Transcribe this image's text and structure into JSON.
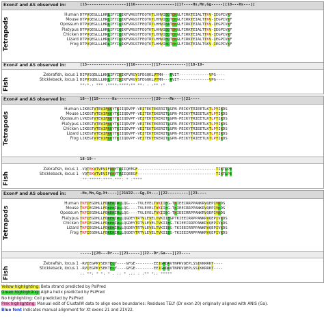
{
  "header_label": "Exon# and AS observed in:",
  "groups": {
    "tetrapods": "Tetrapods",
    "fish": "Fish"
  },
  "tetrapod_species": [
    "Human",
    "Mouse",
    "Opossum",
    "Platypus",
    "Chicken",
    "Lizard",
    "Frog"
  ],
  "fish_species": [
    "Zebrafish, locus 1",
    "Stickleback, locus 1"
  ],
  "blocks": [
    {
      "tetra_ruler": "[15-----------------][16-----------------][17----Hs,Mn,Gg-----][18---Hs---][",
      "tetra_seqs": [
        "DTPVQEGLLLHRLIFYIQIKFVRGSTFEQTKTLHHVIEQTEKGLFIRKTEIALTTKV-IEGPIVKF",
        "DTPVQEGLLLHRLIFYIQIKFVRGSTFEQTKTLHHVIEQTEKGLFIRKTEIALTTKV-IEGPIVKF",
        "DTPVQEGLLLHRLIFYIQIKFVRGSTFEQTRTLHHVIEATEKGLFIRKTEIALTTKV-IEGPIVKF",
        "DTPVQEGLLLHRLIFYIQIKFVRGSTFEQTKTLHHVIEQTEKGLFIRKTEIALTTKV-IEGPIVKF",
        "DTPVQEGLLLHRLIFYIQIKFVRGSTFEQTKTLHHVIEQTEKGLFIRKTEIALTTKV-IEGPIVKF",
        "DTPVQEGLLLHRLIFYIQIKFVRGSTFEQTRTLHHVIEQTEKGLFIRKTEIALTTKV-IEGPIVKF",
        "DTPVQEGLLLHRLIFYIQIKFVRGSTFEQTKTLHHVIEQTEKGLFIRKTEIALTSKV-IEGPIVKF"
      ],
      "fish_ruler": "[15-----------------][16-------][17-----------][18-19-",
      "fish_seqs": [
        "DIPVSQDLLLKKLIFYIKIKFVRGYSFEGQKLVTMH---RVIT-------------VPG----",
        "DIPVSQDLLLKKLIFYIKIKFVRGYSFEGQKLVTMH---RVIT-------------VPG----"
      ],
      "fish_cons": "**:*.: *** :****:****:**  **: :   :**  :*"
    },
    {
      "tetra_ruler": "18--][19------Hs---------------][20----Mn---][21----",
      "tetra_seqs": [
        "LIKEGTVTEVIFKKYTKIIQDVPF-VEITEKTEKERITLGPN-PEIKYTRIEETLKTLPYIKDS",
        "LIKEGTVTEVIFKKYTKIIQDVPF-VEITEKTEKERITLGPN-PEIKYTRIEETLKTLPYIKDS",
        "LVKEGTVTEVIFKKYTKIIQDVPF-VEITEKTEKERITLGPN-PEIKYTRIEETLKTLPYIKDS",
        "LIKEGTVTEVIFKKYTKIIQDVPF-VEITEKTEKERITLGPN-PEIKYTRIEETLKTLPYIKDS",
        "LIKEGTVTEVIFKKYTKIIQDVPF-VEITEKTEKERITLGPN-PEIKYTRIEETLKTLPYIKDS",
        "LIKEGTVTEVIFKKYTKIIQDVPF-VEITEKTEKERITLGPN-PEIKYTRIEETLKTLPYIKDS",
        "LIKEGTVTEVIFKKYTKIIQDVPF-VEITEKTEKERITLGPN-PEIKYTRIEETLKTLPYIKDS"
      ],
      "fish_ruler": "18-19--",
      "fish_seqs": [
        "-VQTEKVTVEVIFKKYTRIIQEEGF----------------------------------TIKTLPE",
        "-VQTEKVTVEVIFKKYTRIIQEEGF----------------------------------TIKTLPE"
      ],
      "fish_cons": " :**:*****:****.***: *                       :****"
    },
    {
      "tetra_ruler": "-Hs,Mn,Gg,Xt----][21V22---Gg,Xt---][22---------][23----",
      "tetra_seqs": [
        "TKFIEGDHLLFDKEKIRLLQG----TVLEVELTVKIIEG-TKIEEIRRPPANKRVQEPIVKDS",
        "TKFIEGDHLLFDKEKIRLLQG----TVLEVELTVKIIEG-TKIEEIRRPPANKRVQEPIVKDS",
        "TKFIEGDHLLFDKEKIRLLQG----TVLEVELTVKIIEG-TKIEEIRRPPANKRVQEPIVKDS",
        "TKFIEGDHLLFDKEKIRLLQGDEYTRTVLEVELTVKIIEGPTKIEEIRRPPANKRVQEPIVKDS",
        "TKFIEGDHLLFDKEKIRLLQGDEYTRTVLEVELTVKIIEG-TKIEEIRRPPANKRVQEPIVKDS",
        "TKFIEGDHLLFDKEKIRLLQGDEYTRTVLEVELTVKIIEG-TKIEEIRRPPANKRVQEPIVKDS",
        "TKFIEGDHLLFDKEKIRLLQGDEYTRTVLEVELTVKIIEG-TKIEEIRRPPANKRVQEPIVKDS"
      ],
      "fish_ruler": "-----][20---Dr---][21-----][22--Dr,Ga---][23----",
      "fish_seqs": [
        "-RVIEGPKYSEKTELY----GFGE--------EEIGRDAVTNPRVQEPLSSIKKRRKT----",
        "-RVIEGPKYSEKTELY----GFGE--------EEIGRDAVTNPRVQEPLSSIKKRRKT----"
      ],
      "fish_cons": " :: **:  * *: * .    ::  *   .::  :  :** *:: *****"
    }
  ],
  "legend": [
    {
      "key": "Yellow highlighting:",
      "text": " Beta strand predicted by PsiPred",
      "style": "yellow"
    },
    {
      "key": "Green highlighting:",
      "text": " Alpha helix predicted by PsiPred",
      "style": "green"
    },
    {
      "key": "No highlighting:",
      "text": " Coil predicted by PsiPred",
      "style": "none"
    },
    {
      "key": "Pink highlighting:",
      "text": " Manual edit of ClustalW data to align exon boundaries: Residues TELY (Dr exon 20) originally aligned with ANIS (Ga).",
      "style": "pink"
    },
    {
      "key": "Blue font",
      "text": " indicates manual alignment for Xt exons 21 and 21V22.",
      "style": "blue"
    }
  ],
  "colors": {
    "beta_strand": "#f4f43a",
    "alpha_helix": "#39d939",
    "manual_edit": "#ff9ad0",
    "blue_font": "#1a3ad8",
    "header_bg": "#d9d9d9"
  }
}
